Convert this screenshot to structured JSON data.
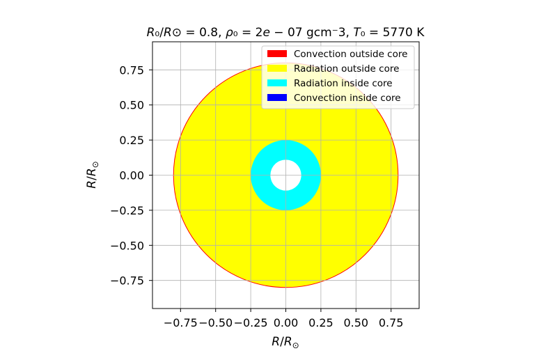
{
  "chart_data": {
    "type": "other",
    "title": {
      "parts": [
        {
          "text": "R",
          "italic": true
        },
        {
          "text": "₀",
          "italic": false
        },
        {
          "text": "/",
          "italic": false
        },
        {
          "text": "R",
          "italic": true
        },
        {
          "text": "⊙",
          "italic": false
        },
        {
          "text": " = 0.8, ",
          "italic": false
        },
        {
          "text": "ρ",
          "italic": true
        },
        {
          "text": "₀",
          "italic": false
        },
        {
          "text": " = 2",
          "italic": false
        },
        {
          "text": "e",
          "italic": true
        },
        {
          "text": " − 07 gcm",
          "italic": false
        },
        {
          "text": "⁻",
          "italic": false
        },
        {
          "text": "3, ",
          "italic": false
        },
        {
          "text": "T",
          "italic": true
        },
        {
          "text": "₀",
          "italic": false
        },
        {
          "text": " = 5770 K",
          "italic": false
        }
      ]
    },
    "xlabel": {
      "italic_main": "R",
      "sep": "/",
      "italic_den": "R",
      "sub": "⊙"
    },
    "ylabel": {
      "italic_main": "R",
      "sep": "/",
      "italic_den": "R",
      "sub": "⊙"
    },
    "xlim": [
      -0.95,
      0.95
    ],
    "ylim": [
      -0.95,
      0.95
    ],
    "x_ticks": [
      "−0.75",
      "−0.50",
      "−0.25",
      "0.00",
      "0.25",
      "0.50",
      "0.75"
    ],
    "x_tick_values": [
      -0.75,
      -0.5,
      -0.25,
      0.0,
      0.25,
      0.5,
      0.75
    ],
    "y_ticks": [
      "0.75",
      "0.50",
      "0.25",
      "0.00",
      "−0.25",
      "−0.50",
      "−0.75"
    ],
    "y_tick_values": [
      0.75,
      0.5,
      0.25,
      0.0,
      -0.25,
      -0.5,
      -0.75
    ],
    "grid": true,
    "aspect": "equal",
    "legend_position": "top-right",
    "legend": [
      {
        "label": "Convection outside core",
        "color": "#ff0000"
      },
      {
        "label": "Radiation outside core",
        "color": "#ffff00"
      },
      {
        "label": "Radiation inside core",
        "color": "#00ffff"
      },
      {
        "label": "Convection inside core",
        "color": "#0000ff"
      }
    ],
    "shells": [
      {
        "name": "outer-edge",
        "r_outer": 0.8,
        "r_inner": 0.0,
        "fill": "#ffff00",
        "edge_color": "#ff0000"
      },
      {
        "name": "core-radiation",
        "r_outer": 0.25,
        "r_inner": 0.11,
        "fill": "#00ffff"
      },
      {
        "name": "center",
        "r_outer": 0.11,
        "r_inner": 0.0,
        "fill": "#ffffff"
      }
    ]
  }
}
